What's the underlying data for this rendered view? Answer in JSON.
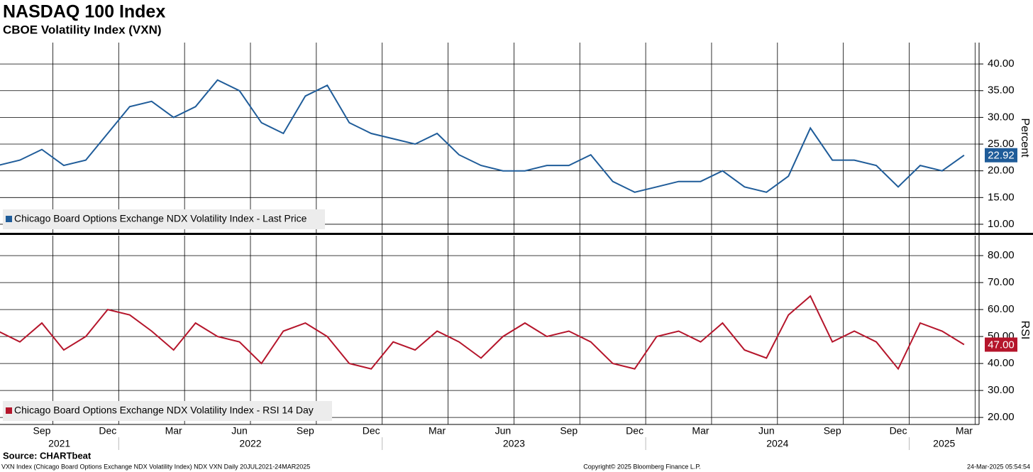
{
  "title": "NASDAQ 100 Index",
  "subtitle": "CBOE Volatility Index (VXN)",
  "source": "Source: CHARTbeat",
  "footer": {
    "left": "VXN Index (Chicago Board Options Exchange NDX Volatility Index) NDX VXN  Daily 20JUL2021-24MAR2025",
    "center": "Copyright© 2025 Bloomberg Finance L.P.",
    "right": "24-Mar-2025 05:54:54"
  },
  "chart_data": [
    {
      "type": "line",
      "ylabel": "Percent",
      "ylim": [
        8.4,
        44
      ],
      "yticks": [
        {
          "value": 10,
          "label": "10.00"
        },
        {
          "value": 15,
          "label": "15.00"
        },
        {
          "value": 20,
          "label": "20.00"
        },
        {
          "value": 25,
          "label": "25.00"
        },
        {
          "value": 30,
          "label": "30.00"
        },
        {
          "value": 35,
          "label": "35.00"
        },
        {
          "value": 40,
          "label": "40.00"
        }
      ],
      "grid": true,
      "x": [
        "2021-07",
        "2021-08",
        "2021-09",
        "2021-10",
        "2021-11",
        "2021-12",
        "2022-01",
        "2022-02",
        "2022-03",
        "2022-04",
        "2022-05",
        "2022-06",
        "2022-07",
        "2022-08",
        "2022-09",
        "2022-10",
        "2022-11",
        "2022-12",
        "2023-01",
        "2023-02",
        "2023-03",
        "2023-04",
        "2023-05",
        "2023-06",
        "2023-07",
        "2023-08",
        "2023-09",
        "2023-10",
        "2023-11",
        "2023-12",
        "2024-01",
        "2024-02",
        "2024-03",
        "2024-04",
        "2024-05",
        "2024-06",
        "2024-07",
        "2024-08",
        "2024-09",
        "2024-10",
        "2024-11",
        "2024-12",
        "2025-01",
        "2025-02",
        "2025-03"
      ],
      "series": [
        {
          "name": "Chicago Board Options Exchange NDX Volatility Index - Last Price",
          "color": "#1f5c99",
          "values": [
            21,
            22,
            24,
            21,
            22,
            27,
            32,
            33,
            30,
            32,
            37,
            35,
            29,
            27,
            34,
            36,
            29,
            27,
            26,
            25,
            27,
            23,
            21,
            20,
            20,
            21,
            21,
            23,
            18,
            16,
            17,
            18,
            18,
            20,
            17,
            16,
            19,
            28,
            22,
            22,
            21,
            17,
            21,
            20,
            22.92
          ],
          "value_labels": [
            null,
            null,
            null,
            null,
            null,
            null,
            null,
            null,
            null,
            null,
            null,
            null,
            null,
            null,
            null,
            null,
            null,
            null,
            null,
            null,
            null,
            null,
            null,
            null,
            null,
            null,
            null,
            null,
            null,
            null,
            null,
            null,
            null,
            null,
            null,
            null,
            null,
            null,
            null,
            null,
            null,
            null,
            null,
            null,
            "22.92"
          ]
        }
      ]
    },
    {
      "type": "line",
      "ylabel": "RSI",
      "ylim": [
        17.4,
        87.4
      ],
      "yticks": [
        {
          "value": 20,
          "label": "20.00"
        },
        {
          "value": 30,
          "label": "30.00"
        },
        {
          "value": 40,
          "label": "40.00"
        },
        {
          "value": 50,
          "label": "50.00"
        },
        {
          "value": 60,
          "label": "60.00"
        },
        {
          "value": 70,
          "label": "70.00"
        },
        {
          "value": 80,
          "label": "80.00"
        }
      ],
      "grid": true,
      "xticks": [
        {
          "value": "2021-09",
          "label": "Sep"
        },
        {
          "value": "2021-12",
          "label": "Dec"
        },
        {
          "value": "2022-03",
          "label": "Mar"
        },
        {
          "value": "2022-06",
          "label": "Jun"
        },
        {
          "value": "2022-09",
          "label": "Sep"
        },
        {
          "value": "2022-12",
          "label": "Dec"
        },
        {
          "value": "2023-03",
          "label": "Mar"
        },
        {
          "value": "2023-06",
          "label": "Jun"
        },
        {
          "value": "2023-09",
          "label": "Sep"
        },
        {
          "value": "2023-12",
          "label": "Dec"
        },
        {
          "value": "2024-03",
          "label": "Mar"
        },
        {
          "value": "2024-06",
          "label": "Jun"
        },
        {
          "value": "2024-09",
          "label": "Sep"
        },
        {
          "value": "2024-12",
          "label": "Dec"
        },
        {
          "value": "2025-03",
          "label": "Mar"
        }
      ],
      "years": [
        "2021",
        "2022",
        "2023",
        "2024",
        "2025"
      ],
      "x": [
        "2021-07",
        "2021-08",
        "2021-09",
        "2021-10",
        "2021-11",
        "2021-12",
        "2022-01",
        "2022-02",
        "2022-03",
        "2022-04",
        "2022-05",
        "2022-06",
        "2022-07",
        "2022-08",
        "2022-09",
        "2022-10",
        "2022-11",
        "2022-12",
        "2023-01",
        "2023-02",
        "2023-03",
        "2023-04",
        "2023-05",
        "2023-06",
        "2023-07",
        "2023-08",
        "2023-09",
        "2023-10",
        "2023-11",
        "2023-12",
        "2024-01",
        "2024-02",
        "2024-03",
        "2024-04",
        "2024-05",
        "2024-06",
        "2024-07",
        "2024-08",
        "2024-09",
        "2024-10",
        "2024-11",
        "2024-12",
        "2025-01",
        "2025-02",
        "2025-03"
      ],
      "series": [
        {
          "name": "Chicago Board Options Exchange NDX Volatility Index - RSI 14 Day",
          "color": "#b5152b",
          "values": [
            52,
            48,
            55,
            45,
            50,
            60,
            58,
            52,
            45,
            55,
            50,
            48,
            40,
            52,
            55,
            50,
            40,
            38,
            48,
            45,
            52,
            48,
            42,
            50,
            55,
            50,
            52,
            48,
            40,
            38,
            50,
            52,
            48,
            55,
            45,
            42,
            58,
            65,
            48,
            52,
            48,
            38,
            55,
            52,
            47
          ],
          "value_labels": [
            null,
            null,
            null,
            null,
            null,
            null,
            null,
            null,
            null,
            null,
            null,
            null,
            null,
            null,
            null,
            null,
            null,
            null,
            null,
            null,
            null,
            null,
            null,
            null,
            null,
            null,
            null,
            null,
            null,
            null,
            null,
            null,
            null,
            null,
            null,
            null,
            null,
            null,
            null,
            null,
            null,
            null,
            null,
            null,
            "47.00"
          ]
        }
      ]
    }
  ]
}
